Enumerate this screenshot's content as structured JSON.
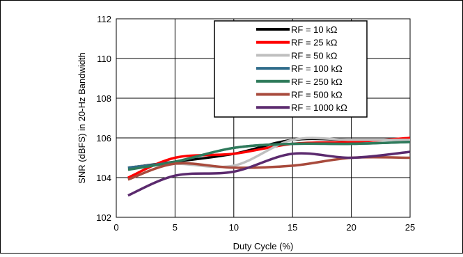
{
  "chart_data": {
    "type": "line",
    "title": "",
    "xlabel": "Duty Cycle (%)",
    "ylabel": "SNR (dBFS) in 20-Hz Bandwidth",
    "xlim": [
      0,
      25
    ],
    "ylim": [
      102,
      112
    ],
    "xticks": [
      0,
      5,
      10,
      15,
      20,
      25
    ],
    "yticks": [
      102,
      104,
      106,
      108,
      110,
      112
    ],
    "grid": true,
    "legend_position": "top-right",
    "series": [
      {
        "name": "RF = 10 kΩ",
        "color": "#000000",
        "x": [
          1,
          5,
          10,
          15,
          20,
          25
        ],
        "y": [
          104.5,
          104.8,
          105.2,
          105.9,
          105.9,
          105.9
        ]
      },
      {
        "name": "RF = 25 kΩ",
        "color": "#ff0000",
        "x": [
          1,
          5,
          10,
          15,
          20,
          25
        ],
        "y": [
          104.0,
          105.0,
          105.2,
          105.7,
          105.8,
          106.0
        ]
      },
      {
        "name": "RF = 50 kΩ",
        "color": "#bfbfbf",
        "x": [
          1,
          5,
          10,
          15,
          20,
          25
        ],
        "y": [
          104.5,
          104.7,
          104.6,
          105.9,
          105.9,
          105.9
        ]
      },
      {
        "name": "RF = 100 kΩ",
        "color": "#2e6b8a",
        "x": [
          1,
          5,
          10,
          15,
          20,
          25
        ],
        "y": [
          104.5,
          104.8,
          105.5,
          105.7,
          105.7,
          105.8
        ]
      },
      {
        "name": "RF = 250 kΩ",
        "color": "#2e7a5a",
        "x": [
          1,
          5,
          10,
          15,
          20,
          25
        ],
        "y": [
          104.4,
          104.8,
          105.5,
          105.7,
          105.7,
          105.8
        ]
      },
      {
        "name": "RF = 500 kΩ",
        "color": "#a84a3c",
        "x": [
          1,
          5,
          10,
          15,
          20,
          25
        ],
        "y": [
          103.9,
          104.7,
          104.5,
          104.6,
          105.0,
          105.0
        ]
      },
      {
        "name": "RF = 1000 kΩ",
        "color": "#5b2a6e",
        "x": [
          1,
          5,
          10,
          15,
          20,
          25
        ],
        "y": [
          103.1,
          104.1,
          104.3,
          105.2,
          105.0,
          105.3
        ]
      }
    ]
  }
}
